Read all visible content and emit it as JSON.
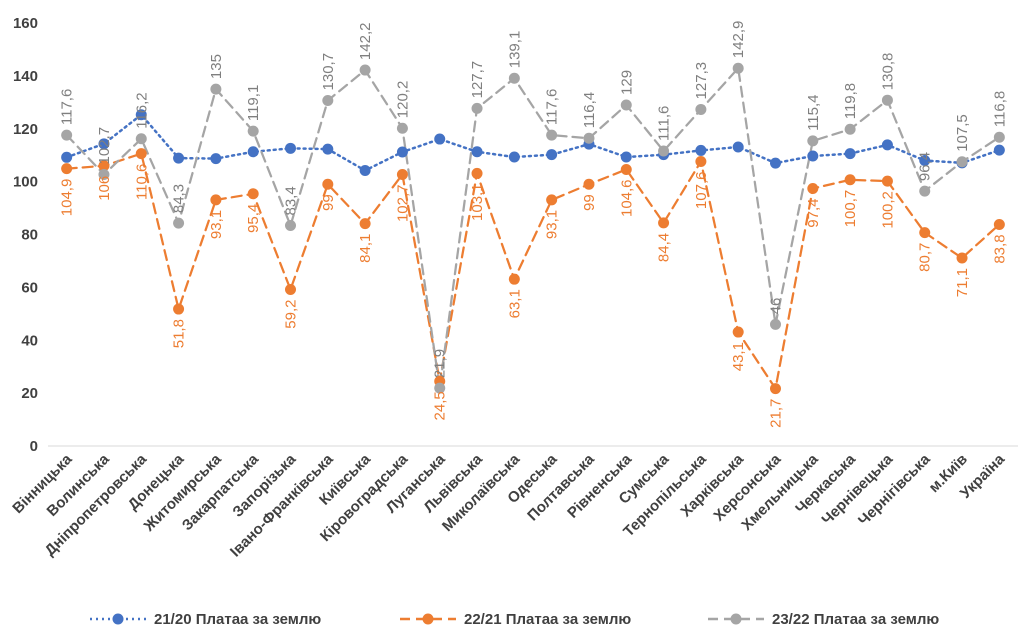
{
  "chart_data": {
    "type": "line",
    "categories": [
      "Вінницька",
      "Волинська",
      "Дніпропетровська",
      "Донецька",
      "Житомирська",
      "Закарпатська",
      "Запорізька",
      "Івано-Франківська",
      "Київська",
      "Кіровоградська",
      "Луганська",
      "Львівська",
      "Миколаївська",
      "Одеська",
      "Полтавська",
      "Рівненська",
      "Сумська",
      "Тернопільська",
      "Харківська",
      "Херсонська",
      "Хмельницька",
      "Черкаська",
      "Чернівецька",
      "Чернігівська",
      "м.Київ",
      "Україна"
    ],
    "ylim": [
      0,
      160
    ],
    "yticks": [
      "0",
      "20",
      "40",
      "60",
      "80",
      "100",
      "120",
      "140",
      "160"
    ],
    "grid": false,
    "legend_position": "bottom",
    "series": [
      {
        "name": "21/20 Платаа за землю",
        "color": "#4472C4",
        "dash": "dotted",
        "values": [
          109.2,
          114.3,
          125.3,
          108.9,
          108.7,
          111.3,
          112.6,
          112.3,
          104.2,
          111.2,
          116.1,
          111.3,
          109.3,
          110.2,
          114.2,
          109.3,
          110.2,
          111.8,
          113.1,
          107.0,
          109.7,
          110.6,
          113.9,
          108.0,
          107.1,
          111.9
        ]
      },
      {
        "name": "22/21 Платаа за землю",
        "color": "#ED7D31",
        "dash": "dashed",
        "values": [
          104.9,
          106,
          110.6,
          51.8,
          93.1,
          95.4,
          59.2,
          99,
          84.1,
          102.7,
          24.5,
          103.1,
          63.1,
          93.1,
          99,
          104.6,
          84.4,
          107.6,
          43.1,
          21.7,
          97.4,
          100.7,
          100.2,
          80.7,
          71.1,
          83.8
        ],
        "labels": [
          "104,9",
          "106",
          "110,6",
          "51,8",
          "93,1",
          "95,4",
          "59,2",
          "99",
          "84,1",
          "102,7",
          "24,5",
          "103,1",
          "63,1",
          "93,1",
          "99",
          "104,6",
          "84,4",
          "107,6",
          "43,1",
          "21,7",
          "97,4",
          "100,7",
          "100,2",
          "80,7",
          "71,1",
          "83,8"
        ]
      },
      {
        "name": "23/22 Платаа за землю",
        "color": "#A5A5A5",
        "dash": "dashed",
        "values": [
          117.6,
          102.7,
          116.2,
          84.3,
          135,
          119.1,
          83.4,
          130.7,
          142.2,
          120.2,
          21.9,
          127.7,
          139.1,
          117.6,
          116.4,
          129,
          111.6,
          127.3,
          142.9,
          46,
          115.4,
          119.8,
          130.8,
          96.4,
          107.5,
          116.8
        ],
        "labels": [
          "117,6",
          "102,7",
          "116,2",
          "84,3",
          "135",
          "119,1",
          "83,4",
          "130,7",
          "142,2",
          "120,2",
          "21,9",
          "127,7",
          "139,1",
          "117,6",
          "116,4",
          "129",
          "111,6",
          "127,3",
          "142,9",
          "46",
          "115,4",
          "119,8",
          "130,8",
          "96,4",
          "107,5",
          "116,8"
        ]
      }
    ]
  }
}
